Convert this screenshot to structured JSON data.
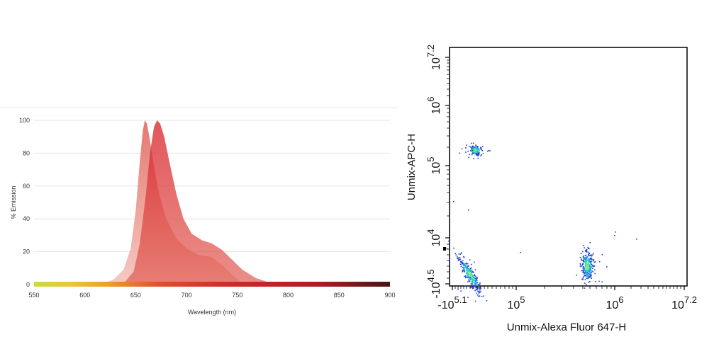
{
  "chart_data": [
    {
      "type": "area",
      "xlabel": "Wavelength (nm)",
      "ylabel": "% Emission",
      "xlim": [
        550,
        900
      ],
      "ylim": [
        0,
        100
      ],
      "x_ticks": [
        "550",
        "600",
        "650",
        "700",
        "750",
        "800",
        "850",
        "900"
      ],
      "y_ticks": [
        "0",
        "20",
        "40",
        "60",
        "80",
        "100"
      ],
      "grid": true,
      "series": [
        {
          "name": "",
          "color": "#e8a7a0",
          "points": [
            [
              615,
              0
            ],
            [
              628,
              3
            ],
            [
              638,
              9
            ],
            [
              645,
              22
            ],
            [
              650,
              45
            ],
            [
              654,
              75
            ],
            [
              657,
              94
            ],
            [
              659,
              100
            ],
            [
              661,
              98
            ],
            [
              664,
              88
            ],
            [
              668,
              72
            ],
            [
              673,
              55
            ],
            [
              680,
              40
            ],
            [
              690,
              28
            ],
            [
              700,
              22
            ],
            [
              712,
              18
            ],
            [
              724,
              17
            ],
            [
              735,
              12
            ],
            [
              745,
              6
            ],
            [
              752,
              2
            ],
            [
              760,
              0.5
            ],
            [
              770,
              0
            ]
          ]
        },
        {
          "name": "",
          "color": "#d6242b",
          "points": [
            [
              632,
              0
            ],
            [
              640,
              2
            ],
            [
              648,
              8
            ],
            [
              654,
              25
            ],
            [
              660,
              55
            ],
            [
              664,
              80
            ],
            [
              668,
              96
            ],
            [
              671,
              100
            ],
            [
              674,
              98
            ],
            [
              678,
              90
            ],
            [
              683,
              75
            ],
            [
              690,
              55
            ],
            [
              697,
              40
            ],
            [
              705,
              31
            ],
            [
              715,
              27
            ],
            [
              725,
              25
            ],
            [
              735,
              21
            ],
            [
              745,
              15
            ],
            [
              755,
              9
            ],
            [
              768,
              4
            ],
            [
              780,
              1.5
            ],
            [
              792,
              0.5
            ],
            [
              800,
              0
            ]
          ]
        }
      ]
    },
    {
      "type": "scatter",
      "xlabel": "Unmix-Alexa Fluor 647-H",
      "ylabel": "Unmix-APC-H",
      "x_ticks": [
        {
          "base": "-10",
          "exp": "5.1"
        },
        {
          "base": "10",
          "exp": "5"
        },
        {
          "base": "10",
          "exp": "6"
        },
        {
          "base": "10",
          "exp": "7.2"
        }
      ],
      "y_ticks": [
        {
          "base": "-10",
          "exp": "4.5"
        },
        {
          "base": "10",
          "exp": "4"
        },
        {
          "base": "10",
          "exp": "5"
        },
        {
          "base": "10",
          "exp": "6"
        },
        {
          "base": "10",
          "exp": "7.2"
        }
      ],
      "scale": "biexponential",
      "populations": [
        {
          "x_center": 51000,
          "y_center": 184000
        },
        {
          "x_center": 47000,
          "y_center": 4000
        },
        {
          "x_center": 520000,
          "y_center": 5000
        }
      ],
      "colormap": [
        "#1b3fd6",
        "#1a9ad6",
        "#25d8c3",
        "#7ee86a"
      ]
    }
  ]
}
